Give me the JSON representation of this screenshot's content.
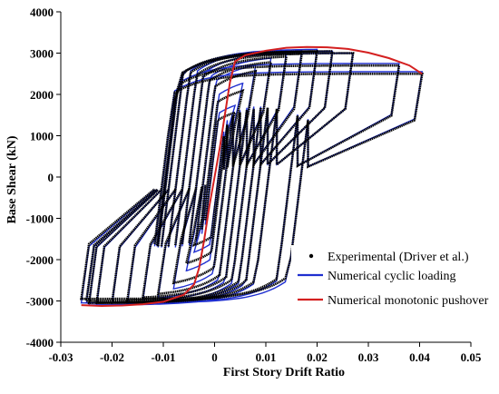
{
  "chart_data": {
    "type": "line",
    "xlabel": "First Story Drift Ratio",
    "ylabel": "Base Shear (kN)",
    "xlim": [
      -0.03,
      0.05
    ],
    "ylim": [
      -4000,
      4000
    ],
    "x_ticks": [
      -0.03,
      -0.02,
      -0.01,
      0,
      0.01,
      0.02,
      0.03,
      0.04,
      0.05
    ],
    "x_tick_labels": [
      "-0.03",
      "-0.02",
      "-0.01",
      "0",
      "0.01",
      "0.02",
      "0.03",
      "0.04",
      "0.05"
    ],
    "y_ticks": [
      4000,
      3000,
      2000,
      1000,
      0,
      -1000,
      -2000,
      -3000,
      -4000
    ],
    "y_tick_labels": [
      "4000",
      "3000",
      "2000",
      "1000",
      "0",
      "-1000",
      "-2000",
      "-3000",
      "-4000"
    ],
    "grid": false,
    "legend_position": "bottom-right",
    "series": [
      {
        "name": "Experimental (Driver et al.)",
        "color": "#000000",
        "style": "hysteresis",
        "amplitudes": [
          0.004,
          0.0055,
          0.008,
          0.011,
          0.014,
          0.017,
          0.02,
          0.023,
          0.027,
          0.036,
          0.0405
        ],
        "neg_amplitudes": [
          -0.004,
          -0.0055,
          -0.008,
          -0.011,
          -0.014,
          -0.017,
          -0.02,
          -0.023,
          -0.0245,
          -0.025,
          -0.026
        ],
        "peak_shear": [
          1800,
          2300,
          2700,
          2850,
          2950,
          3000,
          3050,
          3050,
          3000,
          2700,
          2500
        ],
        "neg_peak_shear": [
          -1900,
          -2300,
          -2700,
          -2900,
          -2950,
          -3000,
          -3050,
          -3050,
          -3050,
          -3000,
          -2950
        ]
      },
      {
        "name": "Numerical cyclic loading",
        "color": "#1f2fd0",
        "style": "hysteresis",
        "amplitudes": [
          0.004,
          0.0055,
          0.008,
          0.011,
          0.014,
          0.017,
          0.02,
          0.023,
          0.027,
          0.036,
          0.0405
        ],
        "neg_amplitudes": [
          -0.004,
          -0.0055,
          -0.008,
          -0.011,
          -0.014,
          -0.017,
          -0.02,
          -0.023,
          -0.0245,
          -0.025,
          -0.026
        ],
        "peak_shear": [
          2000,
          2500,
          2850,
          2950,
          3050,
          3100,
          3100,
          3050,
          3000,
          2750,
          2550
        ],
        "neg_peak_shear": [
          -2100,
          -2500,
          -2850,
          -3000,
          -3050,
          -3100,
          -3100,
          -3100,
          -3100,
          -3050,
          -3050
        ]
      },
      {
        "name": "Numerical monotonic pushover",
        "color": "#d42020",
        "style": "line",
        "x": [
          -0.026,
          -0.022,
          -0.018,
          -0.014,
          -0.01,
          -0.006,
          -0.004,
          -0.003,
          -0.002,
          -0.001,
          0,
          0.001,
          0.002,
          0.003,
          0.004,
          0.006,
          0.01,
          0.014,
          0.018,
          0.022,
          0.026,
          0.03,
          0.034,
          0.038,
          0.0405
        ],
        "y": [
          -3100,
          -3120,
          -3110,
          -3080,
          -3020,
          -2850,
          -2600,
          -2200,
          -1500,
          -700,
          0,
          700,
          1500,
          2300,
          2800,
          2950,
          3060,
          3130,
          3150,
          3140,
          3100,
          3010,
          2880,
          2700,
          2500
        ]
      }
    ]
  }
}
